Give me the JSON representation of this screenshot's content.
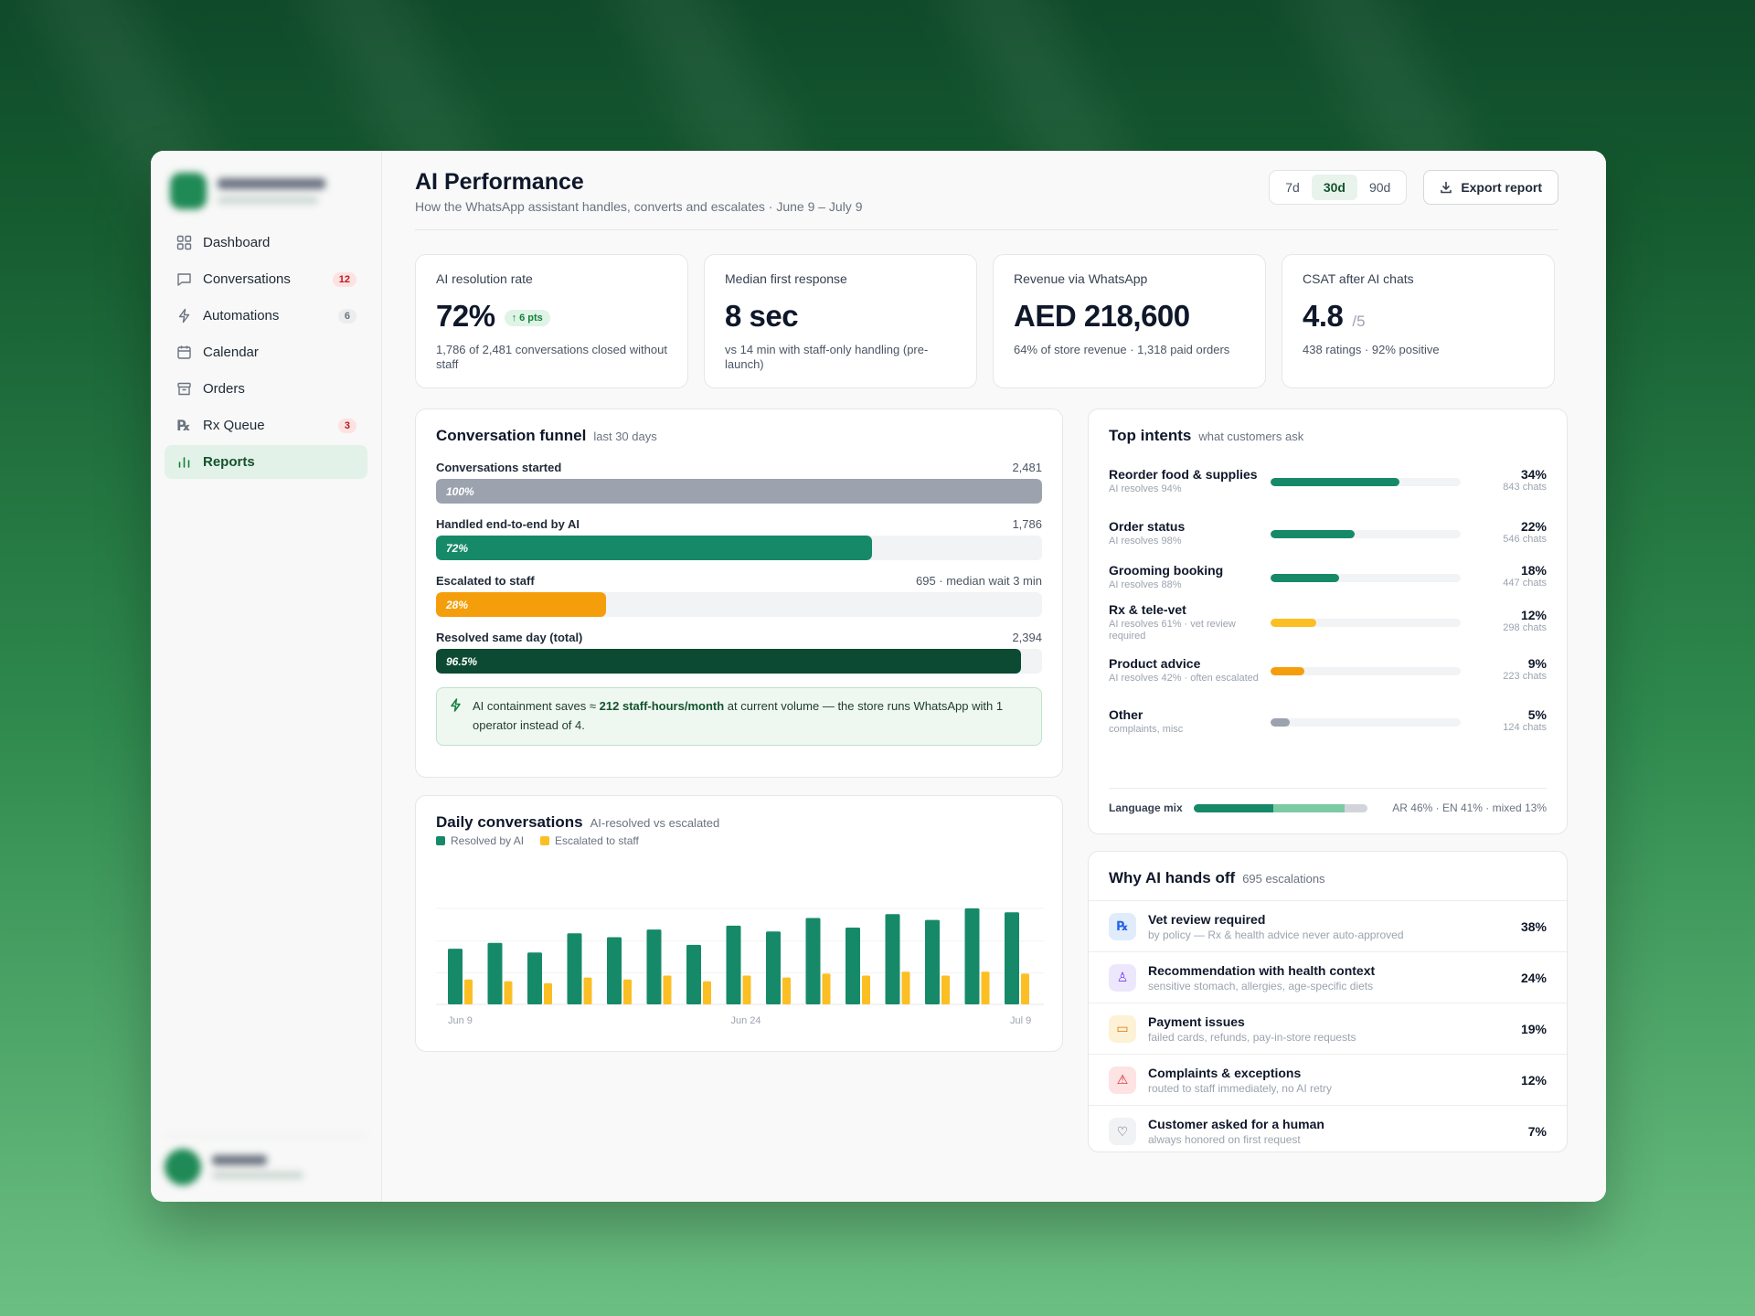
{
  "sidebar": {
    "items": [
      {
        "label": "Dashboard",
        "icon": "grid-icon",
        "badge": ""
      },
      {
        "label": "Conversations",
        "icon": "chat-icon",
        "badge": "12"
      },
      {
        "label": "Automations",
        "icon": "lightning-icon",
        "badge": "6"
      },
      {
        "label": "Calendar",
        "icon": "calendar-icon",
        "badge": ""
      },
      {
        "label": "Orders",
        "icon": "box-icon",
        "badge": ""
      },
      {
        "label": "Rx Queue",
        "icon": "rx-icon",
        "badge": "3"
      },
      {
        "label": "Reports",
        "icon": "bar-chart-icon",
        "badge": "",
        "active": true
      }
    ]
  },
  "header": {
    "title": "AI Performance",
    "subtitle": "How the WhatsApp assistant handles, converts and escalates · June 9 – July 9",
    "ranges": [
      "7d",
      "30d",
      "90d"
    ],
    "active_range": "30d",
    "export_label": "Export report"
  },
  "kpis": [
    {
      "label": "AI resolution rate",
      "value": "72%",
      "suffix": "",
      "delta": "↑ 6 pts",
      "note": "1,786 of 2,481 conversations closed without staff"
    },
    {
      "label": "Median first response",
      "value": "8 sec",
      "suffix": "",
      "delta": "",
      "note": "vs 14 min with staff-only handling (pre-launch)"
    },
    {
      "label": "Revenue via WhatsApp",
      "value": "AED 218,600",
      "suffix": "",
      "delta": "",
      "note": "64% of store revenue · 1,318 paid orders"
    },
    {
      "label": "CSAT after AI chats",
      "value": "4.8",
      "suffix": "/5",
      "delta": "",
      "note": "438 ratings · 92% positive"
    }
  ],
  "funnel": {
    "title": "Conversation funnel",
    "subtitle": "last 30 days",
    "rows": [
      {
        "label": "Conversations started",
        "value": "2,481",
        "pct_label": "100%",
        "fraction": 1.0,
        "color": "#9ca3af"
      },
      {
        "label": "Handled end-to-end by AI",
        "value": "1,786",
        "pct_label": "72%",
        "fraction": 0.72,
        "color": "#168a68"
      },
      {
        "label": "Escalated to staff",
        "value": "695 · median wait 3 min",
        "pct_label": "28%",
        "fraction": 0.28,
        "color": "#f59e0b"
      },
      {
        "label": "Resolved same day (total)",
        "value": "2,394",
        "pct_label": "96.5%",
        "fraction": 0.965,
        "color": "#0c4a33"
      }
    ],
    "callout_pre": "AI containment saves ≈ ",
    "callout_bold": "212 staff-hours/month",
    "callout_post": " at current volume — the store runs WhatsApp with 1 operator instead of 4."
  },
  "daily": {
    "title": "Daily conversations",
    "subtitle": "AI-resolved vs escalated",
    "legend": [
      "Resolved by AI",
      "Escalated to staff"
    ]
  },
  "chart_data": {
    "type": "bar",
    "x_labels": [
      "Jun 9",
      "Jun 24",
      "Jul 9"
    ],
    "series": [
      {
        "name": "Resolved by AI",
        "color": "#168a68",
        "values": [
          58,
          64,
          54,
          74,
          70,
          78,
          62,
          82,
          76,
          90,
          80,
          94,
          88,
          100,
          96
        ]
      },
      {
        "name": "Escalated to staff",
        "color": "#fbbf24",
        "values": [
          26,
          24,
          22,
          28,
          26,
          30,
          24,
          30,
          28,
          32,
          30,
          34,
          30,
          34,
          32
        ]
      }
    ]
  },
  "intents": {
    "title": "Top intents",
    "subtitle": "what customers ask",
    "rows": [
      {
        "name": "Reorder food & supplies",
        "sub": "AI resolves 94%",
        "pct": "34%",
        "count": "843 chats",
        "fraction": 0.34,
        "color": "#168a68"
      },
      {
        "name": "Order status",
        "sub": "AI resolves 98%",
        "pct": "22%",
        "count": "546 chats",
        "fraction": 0.22,
        "color": "#168a68"
      },
      {
        "name": "Grooming booking",
        "sub": "AI resolves 88%",
        "pct": "18%",
        "count": "447 chats",
        "fraction": 0.18,
        "color": "#168a68"
      },
      {
        "name": "Rx & tele-vet",
        "sub": "AI resolves 61% · vet review required",
        "pct": "12%",
        "count": "298 chats",
        "fraction": 0.12,
        "color": "#fbbf24"
      },
      {
        "name": "Product advice",
        "sub": "AI resolves 42% · often escalated",
        "pct": "9%",
        "count": "223 chats",
        "fraction": 0.09,
        "color": "#f59e0b"
      },
      {
        "name": "Other",
        "sub": "complaints, misc",
        "pct": "5%",
        "count": "124 chats",
        "fraction": 0.05,
        "color": "#9ca3af"
      }
    ],
    "language_label": "Language mix",
    "language_text": "AR 46% · EN 41% · mixed 13%",
    "language_mix": [
      {
        "name": "AR",
        "fraction": 0.46,
        "color": "#168a68"
      },
      {
        "name": "EN",
        "fraction": 0.41,
        "color": "#7ccaa3"
      },
      {
        "name": "mixed",
        "fraction": 0.13,
        "color": "#d1d5db"
      }
    ]
  },
  "handoff": {
    "title": "Why AI hands off",
    "subtitle": "695 escalations",
    "rows": [
      {
        "title": "Vet review required",
        "sub": "by policy — Rx & health advice never auto-approved",
        "pct": "38%",
        "icon": "rx-icon",
        "glyph": "℞",
        "bg": "#e0ecfb",
        "fg": "#2563eb"
      },
      {
        "title": "Recommendation with health context",
        "sub": "sensitive stomach, allergies, age-specific diets",
        "pct": "24%",
        "icon": "user-icon",
        "glyph": "♙",
        "bg": "#ede7fb",
        "fg": "#7c3aed"
      },
      {
        "title": "Payment issues",
        "sub": "failed cards, refunds, pay-in-store requests",
        "pct": "19%",
        "icon": "card-icon",
        "glyph": "▭",
        "bg": "#fdf1d6",
        "fg": "#d97706"
      },
      {
        "title": "Complaints & exceptions",
        "sub": "routed to staff immediately, no AI retry",
        "pct": "12%",
        "icon": "warning-icon",
        "glyph": "⚠",
        "bg": "#fde3e3",
        "fg": "#dc2626"
      },
      {
        "title": "Customer asked for a human",
        "sub": "always honored on first request",
        "pct": "7%",
        "icon": "heart-icon",
        "glyph": "♡",
        "bg": "#f1f2f3",
        "fg": "#4b5563"
      }
    ]
  }
}
